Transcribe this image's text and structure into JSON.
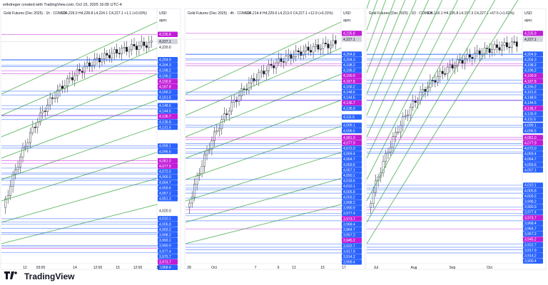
{
  "header": {
    "credit": "erikdreger created with TradingView.com, Oct 15, 2025 16:05 UTC-4"
  },
  "panels": [
    {
      "title": "Gold Futures (Dec 2025) · 1h · COMEX",
      "ohlc": "O4,226.0 H4,228.8 L4,224.1 C4,227.1 +1.1 (+0.03%)",
      "currency": "USD",
      "indicator": "apoc",
      "ylim": [
        3962,
        4243
      ],
      "price_labels": [
        {
          "value": 4235.8,
          "label": "4,235.8",
          "color": "#c21cd8"
        },
        {
          "value": 4227.1,
          "label": "4,227.1",
          "color": "#d1d4dc"
        },
        {
          "value": 4220.0,
          "label": "4,220.0",
          "color": null
        },
        {
          "value": 4204.9,
          "label": "4,204.9",
          "color": "#2962ff"
        },
        {
          "value": 4204.3,
          "label": "4,204.3",
          "color": "#2962ff"
        },
        {
          "value": 4198.2,
          "label": "4,198.2",
          "color": "#2962ff"
        },
        {
          "value": 4196.2,
          "label": "4,196.2",
          "color": "#2962ff"
        },
        {
          "value": 4190.9,
          "label": "4,190.9",
          "color": "#c21cd8"
        },
        {
          "value": 4187.8,
          "label": "4,187.8",
          "color": "#c21cd8"
        },
        {
          "value": 4166.2,
          "label": "4,166.2",
          "color": "#2962ff"
        },
        {
          "value": 4161.6,
          "label": "4,161.6",
          "color": "#2962ff"
        },
        {
          "value": 4148.6,
          "label": "4,148.6",
          "color": "#2962ff"
        },
        {
          "value": 4144.5,
          "label": "4,144.5",
          "color": "#2962ff"
        },
        {
          "value": 4136.7,
          "label": "4,136.7",
          "color": "#c21cd8"
        },
        {
          "value": 4135.9,
          "label": "4,135.9",
          "color": "#2962ff"
        },
        {
          "value": 4131.5,
          "label": "4,131.5",
          "color": "#2962ff"
        },
        {
          "value": 4099.1,
          "label": "4,099.1",
          "color": "#2962ff"
        },
        {
          "value": 4096.5,
          "label": "4,096.5",
          "color": "#2962ff"
        },
        {
          "value": 4081.0,
          "label": "4,081.0",
          "color": "#c21cd8"
        },
        {
          "value": 4077.9,
          "label": "4,077.9",
          "color": "#c21cd8"
        },
        {
          "value": 4072.0,
          "label": "4,072.0",
          "color": "#2962ff"
        },
        {
          "value": 4066.0,
          "label": "4,066.0",
          "color": "#2962ff"
        },
        {
          "value": 4064.7,
          "label": "4,064.7",
          "color": "#2962ff"
        },
        {
          "value": 4059.6,
          "label": "4,059.6",
          "color": "#2962ff"
        },
        {
          "value": 4057.1,
          "label": "4,057.1",
          "color": "#2962ff"
        },
        {
          "value": 4051.3,
          "label": "4,051.3",
          "color": "#2962ff"
        },
        {
          "value": 4020.0,
          "label": "4,020.0",
          "color": null
        },
        {
          "value": 4010.1,
          "label": "4,010.1",
          "color": "#2962ff"
        },
        {
          "value": 4005.8,
          "label": "4,005.8",
          "color": "#2962ff"
        },
        {
          "value": 4003.2,
          "label": "4,003.2",
          "color": "#2962ff"
        },
        {
          "value": 3998.2,
          "label": "3,998.2",
          "color": "#2962ff"
        },
        {
          "value": 3993.1,
          "label": "3,993.1",
          "color": "#2962ff"
        },
        {
          "value": 3990.9,
          "label": "3,990.9",
          "color": "#2962ff"
        },
        {
          "value": 3977.4,
          "label": "3,977.4",
          "color": "#2962ff"
        },
        {
          "value": 3975.7,
          "label": "3,975.7",
          "color": "#2962ff"
        },
        {
          "value": 3973.7,
          "label": "3,973.7",
          "color": "#c21cd8"
        },
        {
          "value": 3968.4,
          "label": "3,968.4",
          "color": "#2962ff"
        }
      ],
      "x_labels": [
        "12",
        "03:00",
        "14",
        "12:00",
        "15",
        "12:00",
        "16"
      ]
    },
    {
      "title": "Gold Futures (Dec 2025) · 4h · COMEX",
      "ohlc": "O4,214.4 H4,229.6 L4,213.0 C4,227.1 +12.9 (+0.31%)",
      "currency": "USD",
      "indicator": "apoc",
      "ylim": [
        3902,
        4243
      ],
      "price_labels": [
        {
          "value": 4235.8,
          "label": "4,235.8",
          "color": "#c21cd8"
        },
        {
          "value": 4227.1,
          "label": "4,227.1",
          "color": "#d1d4dc"
        },
        {
          "value": 4204.9,
          "label": "4,204.9",
          "color": "#2962ff"
        },
        {
          "value": 4204.3,
          "label": "4,204.3",
          "color": "#2962ff"
        },
        {
          "value": 4198.2,
          "label": "4,198.2",
          "color": "#2962ff"
        },
        {
          "value": 4196.2,
          "label": "4,196.2",
          "color": "#2962ff"
        },
        {
          "value": 4190.9,
          "label": "4,190.9",
          "color": "#c21cd8"
        },
        {
          "value": 4187.8,
          "label": "4,187.8",
          "color": "#c21cd8"
        },
        {
          "value": 4166.2,
          "label": "4,166.2",
          "color": "#2962ff"
        },
        {
          "value": 4148.6,
          "label": "4,148.6",
          "color": "#2962ff"
        },
        {
          "value": 4144.5,
          "label": "4,144.5",
          "color": "#2962ff"
        },
        {
          "value": 4136.7,
          "label": "4,136.7",
          "color": "#c21cd8"
        },
        {
          "value": 4135.9,
          "label": "4,135.9",
          "color": "#2962ff"
        },
        {
          "value": 4111.5,
          "label": "4,111.5",
          "color": "#2962ff"
        },
        {
          "value": 4099.1,
          "label": "4,099.1",
          "color": "#2962ff"
        },
        {
          "value": 4096.5,
          "label": "4,096.5",
          "color": "#2962ff"
        },
        {
          "value": 4081.0,
          "label": "4,081.0",
          "color": "#c21cd8"
        },
        {
          "value": 4077.9,
          "label": "4,077.9",
          "color": "#c21cd8"
        },
        {
          "value": 4072.0,
          "label": "4,072.0",
          "color": "#2962ff"
        },
        {
          "value": 4069.4,
          "label": "4,069.4",
          "color": "#2962ff"
        },
        {
          "value": 4064.7,
          "label": "4,064.7",
          "color": "#2962ff"
        },
        {
          "value": 4059.6,
          "label": "4,059.6",
          "color": "#2962ff"
        },
        {
          "value": 4057.1,
          "label": "4,057.1",
          "color": "#2962ff"
        },
        {
          "value": 4050.1,
          "label": "4,050.1",
          "color": "#2962ff"
        },
        {
          "value": 4018.6,
          "label": "4,018.6",
          "color": "#2962ff"
        },
        {
          "value": 4010.1,
          "label": "4,010.1",
          "color": "#2962ff"
        },
        {
          "value": 4005.8,
          "label": "4,005.8",
          "color": "#2962ff"
        },
        {
          "value": 4003.2,
          "label": "4,003.2",
          "color": "#2962ff"
        },
        {
          "value": 3998.2,
          "label": "3,998.2",
          "color": "#2962ff"
        },
        {
          "value": 3990.9,
          "label": "3,990.9",
          "color": "#2962ff"
        },
        {
          "value": 3977.4,
          "label": "3,977.4",
          "color": "#2962ff"
        },
        {
          "value": 3973.7,
          "label": "3,973.7",
          "color": "#c21cd8"
        },
        {
          "value": 3968.4,
          "label": "3,968.4",
          "color": "#2962ff"
        },
        {
          "value": 3964.7,
          "label": "3,964.7",
          "color": "#2962ff"
        },
        {
          "value": 3957.2,
          "label": "3,957.2",
          "color": "#2962ff"
        },
        {
          "value": 3945.2,
          "label": "3,945.2",
          "color": "#c21cd8"
        },
        {
          "value": 3922.7,
          "label": "3,922.7",
          "color": "#2962ff"
        },
        {
          "value": 3917.9,
          "label": "3,917.9",
          "color": "#2962ff"
        },
        {
          "value": 3914.2,
          "label": "3,914.2",
          "color": "#2962ff"
        },
        {
          "value": 3909.4,
          "label": "3,909.4",
          "color": "#2962ff"
        }
      ],
      "x_labels": [
        "28",
        "Oct",
        "7",
        "9",
        "12",
        "15",
        "17"
      ]
    },
    {
      "title": "Gold Futures (Dec 2025) · 1D · COMEX",
      "ohlc": "O4,160.1 H4,235.8 L4,157.3 C4,227.1 +67.5 (+1.62%)",
      "currency": "USD",
      "indicator": "apoc",
      "ylim": [
        3902,
        4243
      ],
      "price_labels": [
        {
          "value": 4235.8,
          "label": "4,235.8",
          "color": "#c21cd8"
        },
        {
          "value": 4227.1,
          "label": "4,227.1",
          "color": "#d1d4dc"
        },
        {
          "value": 4204.9,
          "label": "4,204.9",
          "color": "#2962ff"
        },
        {
          "value": 4204.3,
          "label": "4,204.3",
          "color": "#2962ff"
        },
        {
          "value": 4198.2,
          "label": "4,198.2",
          "color": "#2962ff"
        },
        {
          "value": 4196.2,
          "label": "4,196.2",
          "color": "#2962ff"
        },
        {
          "value": 4190.9,
          "label": "4,190.9",
          "color": "#c21cd8"
        },
        {
          "value": 4187.8,
          "label": "4,187.8",
          "color": "#c21cd8"
        },
        {
          "value": 4166.2,
          "label": "4,166.2",
          "color": "#2962ff"
        },
        {
          "value": 4161.6,
          "label": "4,161.6",
          "color": "#2962ff"
        },
        {
          "value": 4148.6,
          "label": "4,148.6",
          "color": "#2962ff"
        },
        {
          "value": 4144.5,
          "label": "4,144.5",
          "color": "#2962ff"
        },
        {
          "value": 4136.7,
          "label": "4,136.7",
          "color": "#c21cd8"
        },
        {
          "value": 4135.9,
          "label": "4,135.9",
          "color": "#2962ff"
        },
        {
          "value": 4111.5,
          "label": "4,111.5",
          "color": "#2962ff"
        },
        {
          "value": 4099.1,
          "label": "4,099.1",
          "color": "#2962ff"
        },
        {
          "value": 4096.5,
          "label": "4,096.5",
          "color": "#2962ff"
        },
        {
          "value": 4081.0,
          "label": "4,081.0",
          "color": "#c21cd8"
        },
        {
          "value": 4077.9,
          "label": "4,077.9",
          "color": "#c21cd8"
        },
        {
          "value": 4072.0,
          "label": "4,072.0",
          "color": "#2962ff"
        },
        {
          "value": 4069.4,
          "label": "4,069.4",
          "color": "#2962ff"
        },
        {
          "value": 4064.7,
          "label": "4,064.7",
          "color": "#2962ff"
        },
        {
          "value": 4059.6,
          "label": "4,059.6",
          "color": "#2962ff"
        },
        {
          "value": 4057.1,
          "label": "4,057.1",
          "color": "#2962ff"
        },
        {
          "value": 4010.1,
          "label": "4,010.1",
          "color": "#2962ff"
        },
        {
          "value": 4005.8,
          "label": "4,005.8",
          "color": "#2962ff"
        },
        {
          "value": 4003.2,
          "label": "4,003.2",
          "color": "#2962ff"
        },
        {
          "value": 3998.2,
          "label": "3,998.2",
          "color": "#2962ff"
        },
        {
          "value": 3990.9,
          "label": "3,990.9",
          "color": "#2962ff"
        },
        {
          "value": 3977.4,
          "label": "3,977.4",
          "color": "#2962ff"
        },
        {
          "value": 3973.7,
          "label": "3,973.7",
          "color": "#c21cd8"
        },
        {
          "value": 3968.4,
          "label": "3,968.4",
          "color": "#2962ff"
        },
        {
          "value": 3964.7,
          "label": "3,964.7",
          "color": "#2962ff"
        },
        {
          "value": 3957.2,
          "label": "3,957.2",
          "color": "#2962ff"
        },
        {
          "value": 3945.2,
          "label": "3,945.2",
          "color": "#c21cd8"
        },
        {
          "value": 3922.7,
          "label": "3,922.7",
          "color": "#2962ff"
        },
        {
          "value": 3917.9,
          "label": "3,917.9",
          "color": "#2962ff"
        },
        {
          "value": 3914.2,
          "label": "3,914.2",
          "color": "#2962ff"
        },
        {
          "value": 3909.4,
          "label": "3,909.4",
          "color": "#2962ff"
        }
      ],
      "x_labels": [
        "Jul",
        "Aug",
        "Sep",
        "Oct"
      ]
    }
  ],
  "footer": {
    "brand": "TradingView"
  }
}
